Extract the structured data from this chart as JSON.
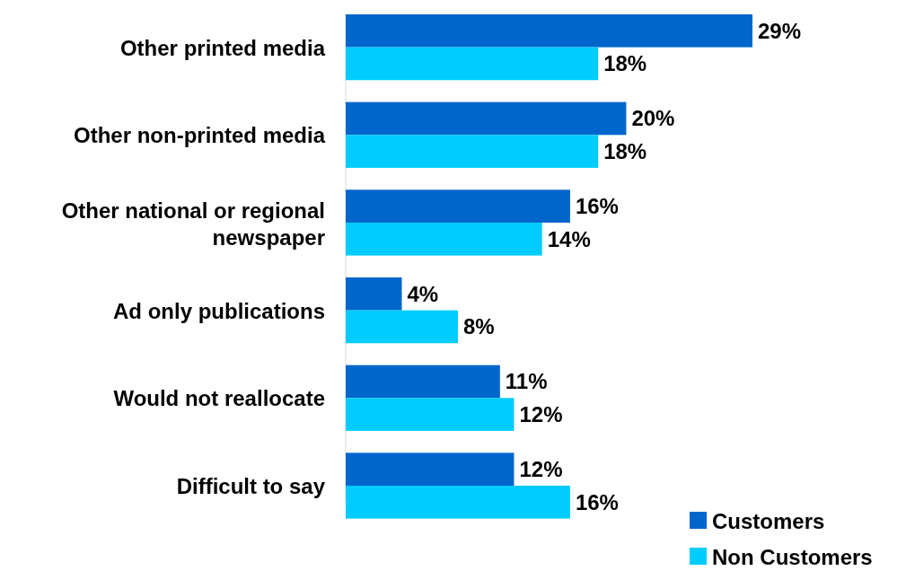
{
  "chart_data": {
    "type": "bar",
    "orientation": "horizontal",
    "categories": [
      "Other printed media",
      "Other non-printed media",
      "Other national or regional newspaper",
      "Ad only publications",
      "Would not reallocate",
      "Difficult to say"
    ],
    "series": [
      {
        "name": "Customers",
        "color": "#0066cc",
        "values": [
          29,
          20,
          16,
          4,
          11,
          12
        ],
        "value_labels": [
          "29%",
          "20%",
          "16%",
          "4%",
          "11%",
          "12%"
        ]
      },
      {
        "name": "Non Customers",
        "color": "#00ccff",
        "values": [
          18,
          18,
          14,
          8,
          12,
          16
        ],
        "value_labels": [
          "18%",
          "18%",
          "14%",
          "8%",
          "12%",
          "16%"
        ]
      }
    ],
    "legend": "bottom right"
  }
}
